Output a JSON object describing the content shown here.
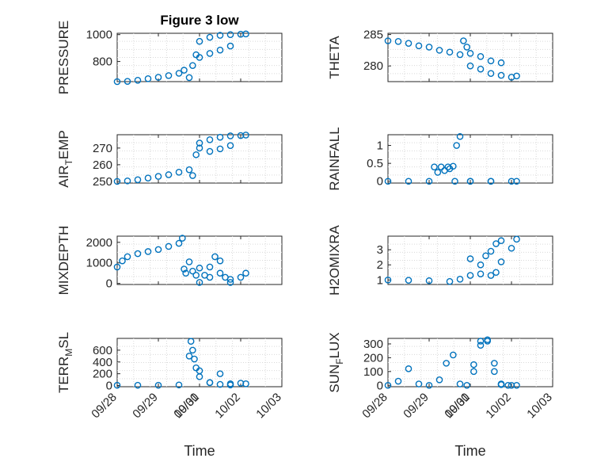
{
  "figure": {
    "title": "Figure 3 low",
    "marker_color": "#0072BD",
    "marker": "open-circle",
    "grid": "minor-dotted"
  },
  "chart_data": [
    {
      "type": "scatter",
      "title": "Figure 3 low",
      "ylabel": "PRESSURE",
      "xlim": [
        "09/28",
        "10/03"
      ],
      "ylim": [
        650,
        1010
      ],
      "yticks": [
        800,
        1000
      ],
      "x": [
        "09/28 00:00",
        "09/28 06:00",
        "09/28 12:00",
        "09/28 18:00",
        "09/29 00:00",
        "09/29 06:00",
        "09/29 12:00",
        "09/29 15:00",
        "09/29 18:00",
        "09/29 20:00",
        "09/29 22:00",
        "09/30 00:00",
        "09/30 06:00",
        "09/30 12:00",
        "09/30 18:00",
        "10/01 00:00",
        "10/01 06:00",
        "10/01 12:00",
        "10/01 18:00",
        "10/02 00:00",
        "10/02 03:00"
      ],
      "y": [
        650,
        652,
        660,
        672,
        682,
        695,
        712,
        735,
        680,
        770,
        850,
        830,
        860,
        885,
        915,
        950,
        980,
        995,
        1000,
        1003,
        1005
      ]
    },
    {
      "type": "scatter",
      "title": "",
      "ylabel": "THETA",
      "xlim": [
        "09/28",
        "10/03"
      ],
      "ylim": [
        277.5,
        285.2
      ],
      "yticks": [
        280,
        285
      ],
      "x": [
        "09/28 00:00",
        "09/28 06:00",
        "09/28 12:00",
        "09/28 18:00",
        "09/29 00:00",
        "09/29 06:00",
        "09/29 12:00",
        "09/29 18:00",
        "09/29 20:00",
        "09/29 22:00",
        "09/30 00:00",
        "09/30 06:00",
        "09/30 12:00",
        "09/30 18:00",
        "10/01 00:00",
        "10/01 06:00",
        "10/01 12:00",
        "10/01 18:00",
        "10/02 00:00",
        "10/02 03:00"
      ],
      "y": [
        284,
        283.9,
        283.6,
        283.2,
        283,
        282.5,
        282.2,
        281.8,
        284,
        283,
        282,
        281.5,
        280.8,
        280.5,
        280,
        279.5,
        278.8,
        278.5,
        278.2,
        278.4
      ]
    },
    {
      "type": "scatter",
      "title": "",
      "ylabel": "AIR_TEMP",
      "xlim": [
        "09/28",
        "10/03"
      ],
      "ylim": [
        249,
        278
      ],
      "yticks": [
        250,
        260,
        270
      ],
      "x": [
        "09/28 00:00",
        "09/28 06:00",
        "09/28 12:00",
        "09/28 18:00",
        "09/29 00:00",
        "09/29 06:00",
        "09/29 12:00",
        "09/29 18:00",
        "09/29 20:00",
        "09/29 22:00",
        "09/30 00:00",
        "09/30 06:00",
        "09/30 12:00",
        "09/30 18:00",
        "10/01 00:00",
        "10/01 06:00",
        "10/01 12:00",
        "10/01 18:00",
        "10/02 00:00",
        "10/02 03:00"
      ],
      "y": [
        250,
        250.3,
        251,
        252,
        253,
        254,
        255.5,
        257,
        253.5,
        266,
        270,
        268,
        269.5,
        271.5,
        273,
        275,
        276.5,
        277.3,
        277.5,
        277.8
      ]
    },
    {
      "type": "scatter",
      "title": "",
      "ylabel": "RAINFALL",
      "xlim": [
        "09/28",
        "10/03"
      ],
      "ylim": [
        -0.05,
        1.3
      ],
      "yticks": [
        0,
        0.5,
        1
      ],
      "ytick_labels": [
        "0",
        "0.5",
        "1"
      ],
      "x": [
        "09/28 00:00",
        "09/28 12:00",
        "09/29 00:00",
        "09/29 03:00",
        "09/29 05:00",
        "09/29 07:00",
        "09/29 09:00",
        "09/29 11:00",
        "09/29 12:00",
        "09/29 14:00",
        "09/29 15:00",
        "09/29 16:00",
        "09/29 18:00",
        "09/30 00:00",
        "09/30 12:00",
        "10/01 00:00",
        "10/01 12:00",
        "10/02 00:00",
        "10/02 03:00"
      ],
      "y": [
        0,
        0,
        0,
        0.4,
        0.25,
        0.4,
        0.3,
        0.4,
        0.35,
        0.42,
        0,
        1,
        1.25,
        0,
        0,
        0,
        0,
        0,
        0
      ]
    },
    {
      "type": "scatter",
      "title": "",
      "ylabel": "MIXDEPTH",
      "xlim": [
        "09/28",
        "10/03"
      ],
      "ylim": [
        -50,
        2300
      ],
      "yticks": [
        0,
        1000,
        2000
      ],
      "x": [
        "09/28 00:00",
        "09/28 03:00",
        "09/28 06:00",
        "09/28 12:00",
        "09/28 18:00",
        "09/29 00:00",
        "09/29 06:00",
        "09/29 12:00",
        "09/29 14:00",
        "09/29 15:00",
        "09/29 16:00",
        "09/29 18:00",
        "09/29 20:00",
        "09/29 22:00",
        "09/30 00:00",
        "09/30 03:00",
        "09/30 06:00",
        "09/30 09:00",
        "09/30 12:00",
        "09/30 15:00",
        "09/30 18:00",
        "10/01 00:00",
        "10/01 06:00",
        "10/01 12:00",
        "10/01 18:00",
        "10/02 00:00",
        "10/02 03:00"
      ],
      "y": [
        800,
        1100,
        1300,
        1450,
        1550,
        1650,
        1800,
        1950,
        2200,
        700,
        500,
        1050,
        600,
        400,
        750,
        400,
        800,
        1300,
        1100,
        300,
        50,
        50,
        300,
        500,
        200,
        300,
        500
      ]
    },
    {
      "type": "scatter",
      "title": "",
      "ylabel": "H2OMIXRA",
      "xlim": [
        "09/28",
        "10/03"
      ],
      "ylim": [
        0.7,
        3.9
      ],
      "yticks": [
        1,
        2,
        3
      ],
      "x": [
        "09/28 00:00",
        "09/28 12:00",
        "09/29 00:00",
        "09/29 12:00",
        "09/29 18:00",
        "09/30 00:00",
        "09/30 06:00",
        "09/30 12:00",
        "09/30 15:00",
        "09/30 18:00",
        "10/01 00:00",
        "10/01 06:00",
        "10/01 09:00",
        "10/01 12:00",
        "10/01 15:00",
        "10/01 18:00",
        "10/02 00:00",
        "10/02 03:00"
      ],
      "y": [
        1,
        0.98,
        0.95,
        0.9,
        1.05,
        1.3,
        1.4,
        1.3,
        1.5,
        2.2,
        2.4,
        2.0,
        2.6,
        2.9,
        3.4,
        3.6,
        3.1,
        3.7
      ]
    },
    {
      "type": "scatter",
      "title": "",
      "ylabel": "TERR_MSL",
      "xlim": [
        "09/28",
        "10/03"
      ],
      "ylim": [
        -20,
        800
      ],
      "yticks": [
        0,
        200,
        400,
        600
      ],
      "x": [
        "09/28 00:00",
        "09/28 12:00",
        "09/29 00:00",
        "09/29 12:00",
        "09/29 18:00",
        "09/29 19:00",
        "09/29 20:00",
        "09/29 21:00",
        "09/29 22:00",
        "09/30 00:00",
        "09/30 06:00",
        "09/30 12:00",
        "09/30 18:00",
        "10/01 00:00",
        "10/01 06:00",
        "10/01 12:00",
        "10/01 18:00",
        "10/02 00:00",
        "10/02 03:00"
      ],
      "y": [
        5,
        5,
        5,
        10,
        500,
        750,
        600,
        450,
        300,
        250,
        50,
        200,
        30,
        150,
        50,
        20,
        10,
        40,
        30
      ]
    },
    {
      "type": "scatter",
      "title": "",
      "ylabel": "SUN_FLUX",
      "xlim": [
        "09/28",
        "10/03"
      ],
      "ylim": [
        -10,
        340
      ],
      "yticks": [
        0,
        100,
        200,
        300
      ],
      "x": [
        "09/28 00:00",
        "09/28 06:00",
        "09/28 12:00",
        "09/28 18:00",
        "09/29 00:00",
        "09/29 06:00",
        "09/29 10:00",
        "09/29 14:00",
        "09/29 18:00",
        "09/29 22:00",
        "09/30 02:00",
        "09/30 06:00",
        "09/30 10:00",
        "09/30 14:00",
        "09/30 18:00",
        "09/30 22:00",
        "10/01 02:00",
        "10/01 06:00",
        "10/01 10:00",
        "10/01 14:00",
        "10/01 18:00",
        "10/02 00:00",
        "10/02 03:00"
      ],
      "y": [
        0,
        30,
        120,
        10,
        0,
        40,
        160,
        220,
        10,
        0,
        100,
        290,
        320,
        160,
        10,
        0,
        150,
        320,
        330,
        100,
        5,
        0,
        0
      ]
    }
  ],
  "axes": {
    "x_tick_labels": [
      "09/28",
      "09/29",
      "09/30",
      "10/01",
      "10/02",
      "10/03"
    ],
    "x_title": "Time"
  }
}
